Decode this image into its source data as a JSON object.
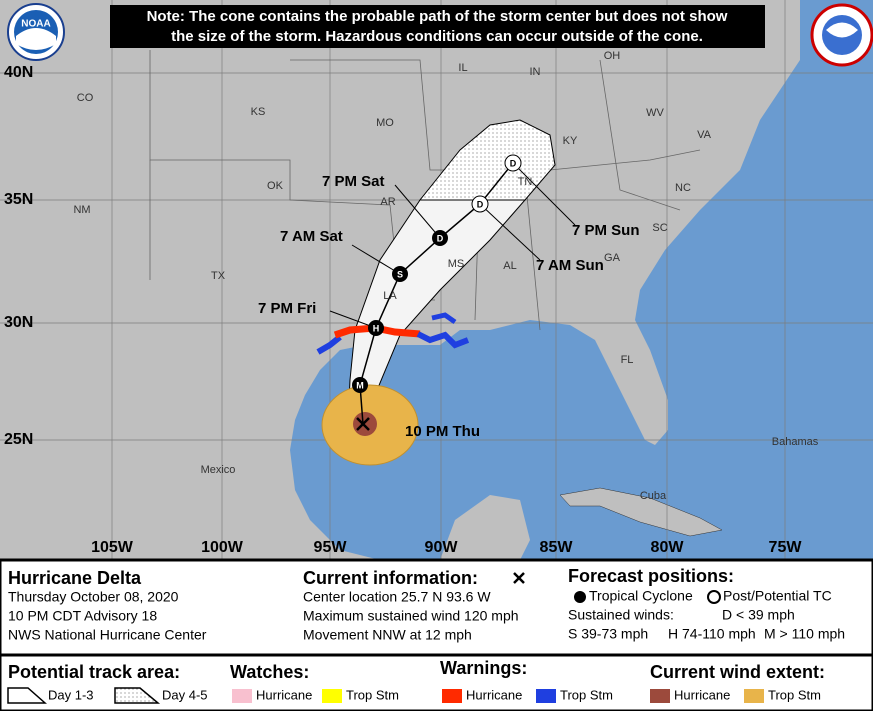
{
  "note": [
    "Note: The cone contains the probable path of the storm center but does not show",
    "the size of the storm. Hazardous conditions can occur outside of the cone."
  ],
  "logo": "NOAA",
  "latitudes": [
    "40N",
    "35N",
    "30N",
    "25N"
  ],
  "longitudes": [
    "105W",
    "100W",
    "95W",
    "90W",
    "85W",
    "80W",
    "75W"
  ],
  "places": [
    "CO",
    "KS",
    "MO",
    "IL",
    "IN",
    "OH",
    "WV",
    "VA",
    "KY",
    "TN",
    "NC",
    "SC",
    "GA",
    "AL",
    "MS",
    "AR",
    "LA",
    "OK",
    "TX",
    "NM",
    "FL",
    "Mexico",
    "Bahamas",
    "Cuba"
  ],
  "forecast_times": [
    "7 PM Sat",
    "7 AM Sat",
    "7 PM Fri",
    "10 PM Thu",
    "7 PM Sun",
    "7 AM Sun"
  ],
  "position_letters": [
    "M",
    "H",
    "S",
    "D",
    "D",
    "D"
  ],
  "storm": {
    "name": "Hurricane Delta",
    "date": "Thursday October 08, 2020",
    "advisory": "10 PM CDT Advisory 18",
    "issuer": "NWS National Hurricane Center"
  },
  "current_information": {
    "title": "Current information:",
    "center_location": "Center location 25.7 N 93.6 W",
    "max_wind": "Maximum sustained wind 120 mph",
    "movement": "Movement NNW at 12 mph"
  },
  "forecast_positions": {
    "title": "Forecast positions:",
    "tropical_cyclone": "Tropical Cyclone",
    "post_potential": "Post/Potential TC",
    "sustained_winds": "Sustained winds:",
    "d": "D < 39 mph",
    "s": "S 39-73 mph",
    "h": "H 74-110 mph",
    "m": "M > 110 mph"
  },
  "legend": {
    "track_area": {
      "title": "Potential track area:",
      "day13": "Day 1-3",
      "day45": "Day 4-5"
    },
    "watches": {
      "title": "Watches:",
      "hurricane": "Hurricane",
      "trop_stm": "Trop Stm"
    },
    "warnings": {
      "title": "Warnings:",
      "hurricane": "Hurricane",
      "trop_stm": "Trop Stm"
    },
    "wind_extent": {
      "title": "Current wind extent:",
      "hurricane": "Hurricane",
      "trop_stm": "Trop Stm"
    }
  }
}
